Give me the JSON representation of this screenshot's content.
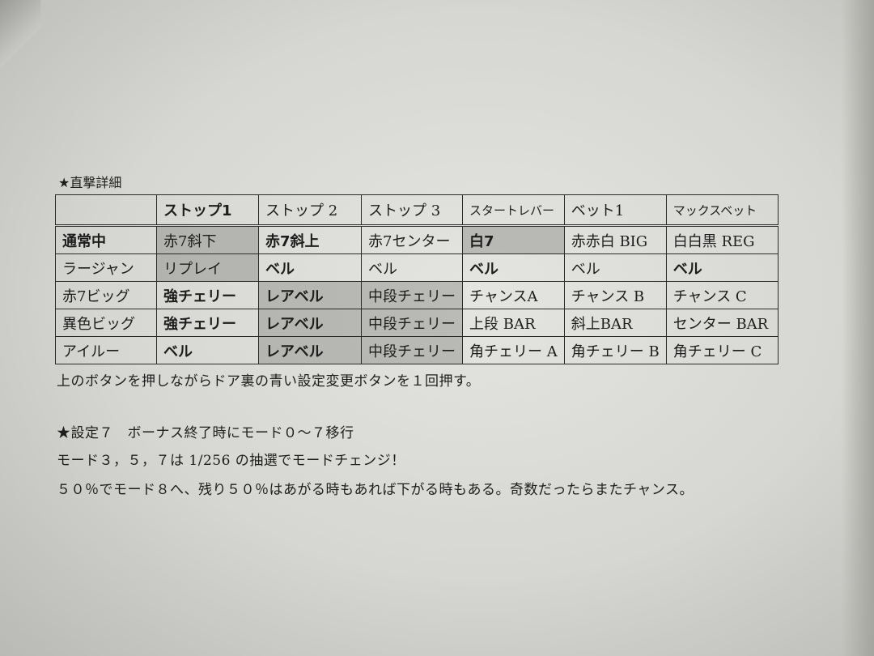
{
  "section1_title": "★直撃詳細",
  "table": {
    "headers": [
      "",
      "ストップ1",
      "ストップ 2",
      "ストップ 3",
      "スタートレバー",
      "ベット1",
      "マックスベット"
    ],
    "rows": [
      [
        "通常中",
        "赤7斜下",
        "赤7斜上",
        "赤7センター",
        "白7",
        "赤赤白 BIG",
        "白白黒 REG"
      ],
      [
        "ラージャン",
        "リプレイ",
        "ベル",
        "ベル",
        "ベル",
        "ベル",
        "ベル"
      ],
      [
        "赤7ビッグ",
        "強チェリー",
        "レアベル",
        "中段チェリー",
        "チャンスA",
        "チャンス B",
        "チャンス C"
      ],
      [
        "異色ビッグ",
        "強チェリー",
        "レアベル",
        "中段チェリー",
        "上段 BAR",
        "斜上BAR",
        "センター BAR"
      ],
      [
        "アイルー",
        "ベル",
        "レアベル",
        "中段チェリー",
        "角チェリー A",
        "角チェリー B",
        "角チェリー C"
      ]
    ]
  },
  "note": "上のボタンを押しながらドア裏の青い設定変更ボタンを１回押す。",
  "section2_title": "★設定７　ボーナス終了時にモード０～７移行",
  "line2": "モード３，５，７は 1/256 の抽選でモードチェンジ！",
  "line3": "５０％でモード８へ、残り５０％はあがる時もあれば下がる時もある。奇数だったらまたチャンス。"
}
